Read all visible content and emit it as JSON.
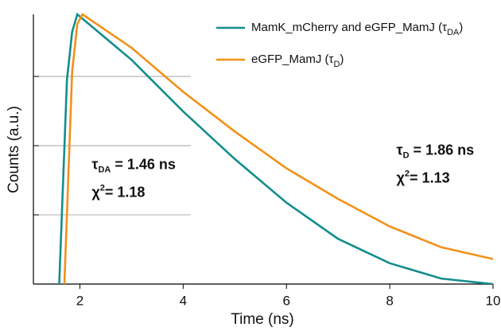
{
  "chart_data": {
    "type": "line",
    "x_label": "Time (ns)",
    "y_label": "Counts (a.u.)",
    "xlim": [
      1.1,
      10
    ],
    "xticks": [
      2,
      4,
      6,
      8,
      10
    ],
    "ylim": [
      1,
      7900
    ],
    "y_log": true,
    "y_gridlines": [
      10,
      100,
      1000
    ],
    "series": [
      {
        "name": [
          "MamK_mCherry and eGFP_MamJ (τ",
          "DA",
          ")"
        ],
        "color": "#138d8d",
        "x": [
          1.6,
          1.75,
          1.85,
          1.95,
          3,
          4,
          5,
          6,
          7,
          8,
          9,
          10
        ],
        "values": [
          1,
          900,
          4400,
          7890,
          1740,
          312,
          64,
          15,
          4.5,
          2.0,
          1.2,
          1.0
        ]
      },
      {
        "name": [
          "eGFP_MamJ (τ",
          "D",
          ")"
        ],
        "color": "#f39019",
        "x": [
          1.7,
          1.85,
          1.95,
          2.05,
          3,
          4,
          5,
          6,
          7,
          8,
          9,
          10
        ],
        "values": [
          1,
          1170,
          5700,
          7890,
          2600,
          600,
          160,
          47,
          17,
          6.8,
          3.4,
          2.3
        ]
      }
    ],
    "annotations": [
      {
        "lines": [
          [
            "τ",
            "DA",
            " = 1.46 ns"
          ],
          [
            "χ",
            "2",
            "= 1.18"
          ]
        ],
        "x": 3.0,
        "y": 40
      },
      {
        "lines": [
          [
            "τ",
            "D",
            " = 1.86 ns"
          ],
          [
            "χ",
            "2",
            "= 1.13"
          ]
        ],
        "x": 8.9,
        "y": 65
      }
    ]
  }
}
